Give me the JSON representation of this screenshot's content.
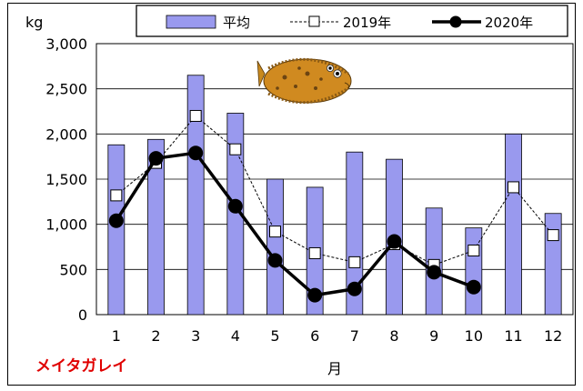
{
  "chart_data": {
    "type": "bar+line",
    "title": "",
    "unit_label": "kg",
    "xlabel": "月",
    "species_label": "メイタガレイ",
    "species_color": "#e00000",
    "categories": [
      "1",
      "2",
      "3",
      "4",
      "5",
      "6",
      "7",
      "8",
      "9",
      "10",
      "11",
      "12"
    ],
    "ylim": [
      0,
      3000
    ],
    "yticks": [
      0,
      500,
      1000,
      1500,
      2000,
      2500,
      3000
    ],
    "ytick_labels": [
      "0",
      "500",
      "1,000",
      "1,500",
      "2,000",
      "2,500",
      "3,000"
    ],
    "grid": "horizontal",
    "legend_position": "top",
    "series": [
      {
        "name": "平均",
        "kind": "bar",
        "color": "#9999ee",
        "values": [
          1880,
          1940,
          2650,
          2230,
          1500,
          1410,
          1800,
          1720,
          1180,
          960,
          2000,
          1120
        ]
      },
      {
        "name": "2019年",
        "kind": "line-dashed-open-square",
        "color": "#000000",
        "values": [
          1320,
          1680,
          2200,
          1830,
          920,
          680,
          580,
          780,
          550,
          710,
          1410,
          880
        ]
      },
      {
        "name": "2020年",
        "kind": "line-solid-filled-circle",
        "color": "#000000",
        "values": [
          1040,
          1730,
          1790,
          1200,
          600,
          215,
          285,
          810,
          470,
          305,
          null,
          null
        ]
      }
    ]
  }
}
